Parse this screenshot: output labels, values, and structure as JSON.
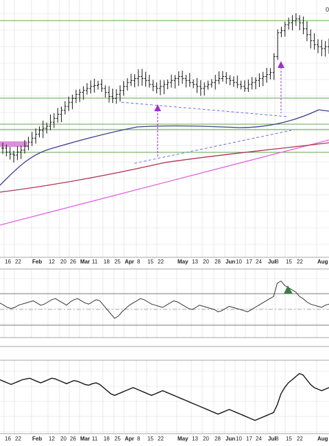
{
  "corner_label": "0",
  "colors": {
    "grid": "#d9d9d9",
    "support": "#5aa848",
    "bars": "#111111",
    "ma50": "#3b3f8f",
    "ma200": "#b0304e",
    "trendline": "#e060e0",
    "channel": "#6e6ee0",
    "arrow": "#9b30d0",
    "upper_osc": "#333333",
    "overbought_fill": "#3a7d44",
    "lower_osc": "#111111",
    "midline": "#999999"
  },
  "chart_data": [
    {
      "type": "ohlc",
      "panel": "price",
      "x_ticks": [
        "16",
        "22",
        "Feb",
        "12",
        "20",
        "26",
        "Mar",
        "11",
        "18",
        "25",
        "Apr",
        "8",
        "15",
        "22",
        "May",
        "13",
        "20",
        "28",
        "Jun",
        "10",
        "17",
        "24",
        "Jul",
        "8",
        "15",
        "22",
        "Aug"
      ],
      "month_ticks": [
        "Feb",
        "Mar",
        "Apr",
        "May",
        "Jun",
        "Jul",
        "Aug"
      ],
      "horizontal_levels": [
        0,
        120,
        162,
        177,
        198
      ],
      "overlays": [
        "50-day moving average",
        "200-day moving average",
        "rising trendline",
        "triangle pattern",
        "breakout arrows"
      ],
      "close_trace": [
        58,
        54,
        52,
        51,
        54,
        56,
        60,
        64,
        68,
        72,
        76,
        78,
        80,
        84,
        88,
        92,
        96,
        100,
        104,
        108,
        112,
        114,
        116,
        118,
        120,
        121,
        122,
        118,
        114,
        110,
        108,
        112,
        116,
        120,
        124,
        126,
        128,
        130,
        128,
        126,
        122,
        120,
        118,
        120,
        122,
        124,
        126,
        128,
        130,
        128,
        126,
        124,
        122,
        120,
        118,
        120,
        122,
        124,
        126,
        128,
        130,
        128,
        126,
        124,
        122,
        120,
        118,
        122,
        124,
        126,
        128,
        130,
        132,
        134,
        150,
        174,
        176,
        182,
        184,
        186,
        188,
        184,
        178,
        172,
        166,
        162,
        160,
        158,
        160,
        162
      ]
    },
    {
      "type": "line",
      "panel": "upper-oscillator",
      "values": [
        54,
        52,
        50,
        49,
        50,
        52,
        53,
        54,
        55,
        56,
        54,
        52,
        53,
        55,
        57,
        58,
        56,
        54,
        52,
        55,
        57,
        58,
        56,
        54,
        53,
        55,
        57,
        56,
        52,
        48,
        44,
        40,
        42,
        46,
        49,
        52,
        54,
        56,
        58,
        57,
        55,
        53,
        52,
        51,
        50,
        52,
        54,
        56,
        55,
        53,
        51,
        49,
        48,
        50,
        52,
        51,
        50,
        49,
        48,
        46,
        47,
        49,
        51,
        50,
        49,
        48,
        47,
        46,
        48,
        50,
        52,
        54,
        56,
        58,
        60,
        72,
        74,
        70,
        68,
        66,
        64,
        60,
        58,
        55,
        53,
        52,
        51,
        50,
        52,
        53
      ]
    },
    {
      "type": "line",
      "panel": "lower-oscillator",
      "values": [
        62,
        60,
        58,
        56,
        58,
        60,
        62,
        63,
        64,
        62,
        60,
        58,
        60,
        62,
        64,
        63,
        61,
        59,
        57,
        59,
        61,
        60,
        58,
        56,
        55,
        57,
        58,
        56,
        52,
        48,
        44,
        42,
        44,
        46,
        48,
        50,
        52,
        50,
        48,
        46,
        44,
        42,
        44,
        46,
        48,
        46,
        44,
        42,
        40,
        38,
        36,
        34,
        32,
        30,
        28,
        26,
        24,
        22,
        20,
        18,
        20,
        22,
        24,
        22,
        20,
        18,
        16,
        14,
        12,
        10,
        12,
        14,
        16,
        18,
        20,
        30,
        44,
        52,
        58,
        62,
        66,
        70,
        68,
        62,
        56,
        52,
        50,
        48,
        50,
        52
      ]
    }
  ]
}
